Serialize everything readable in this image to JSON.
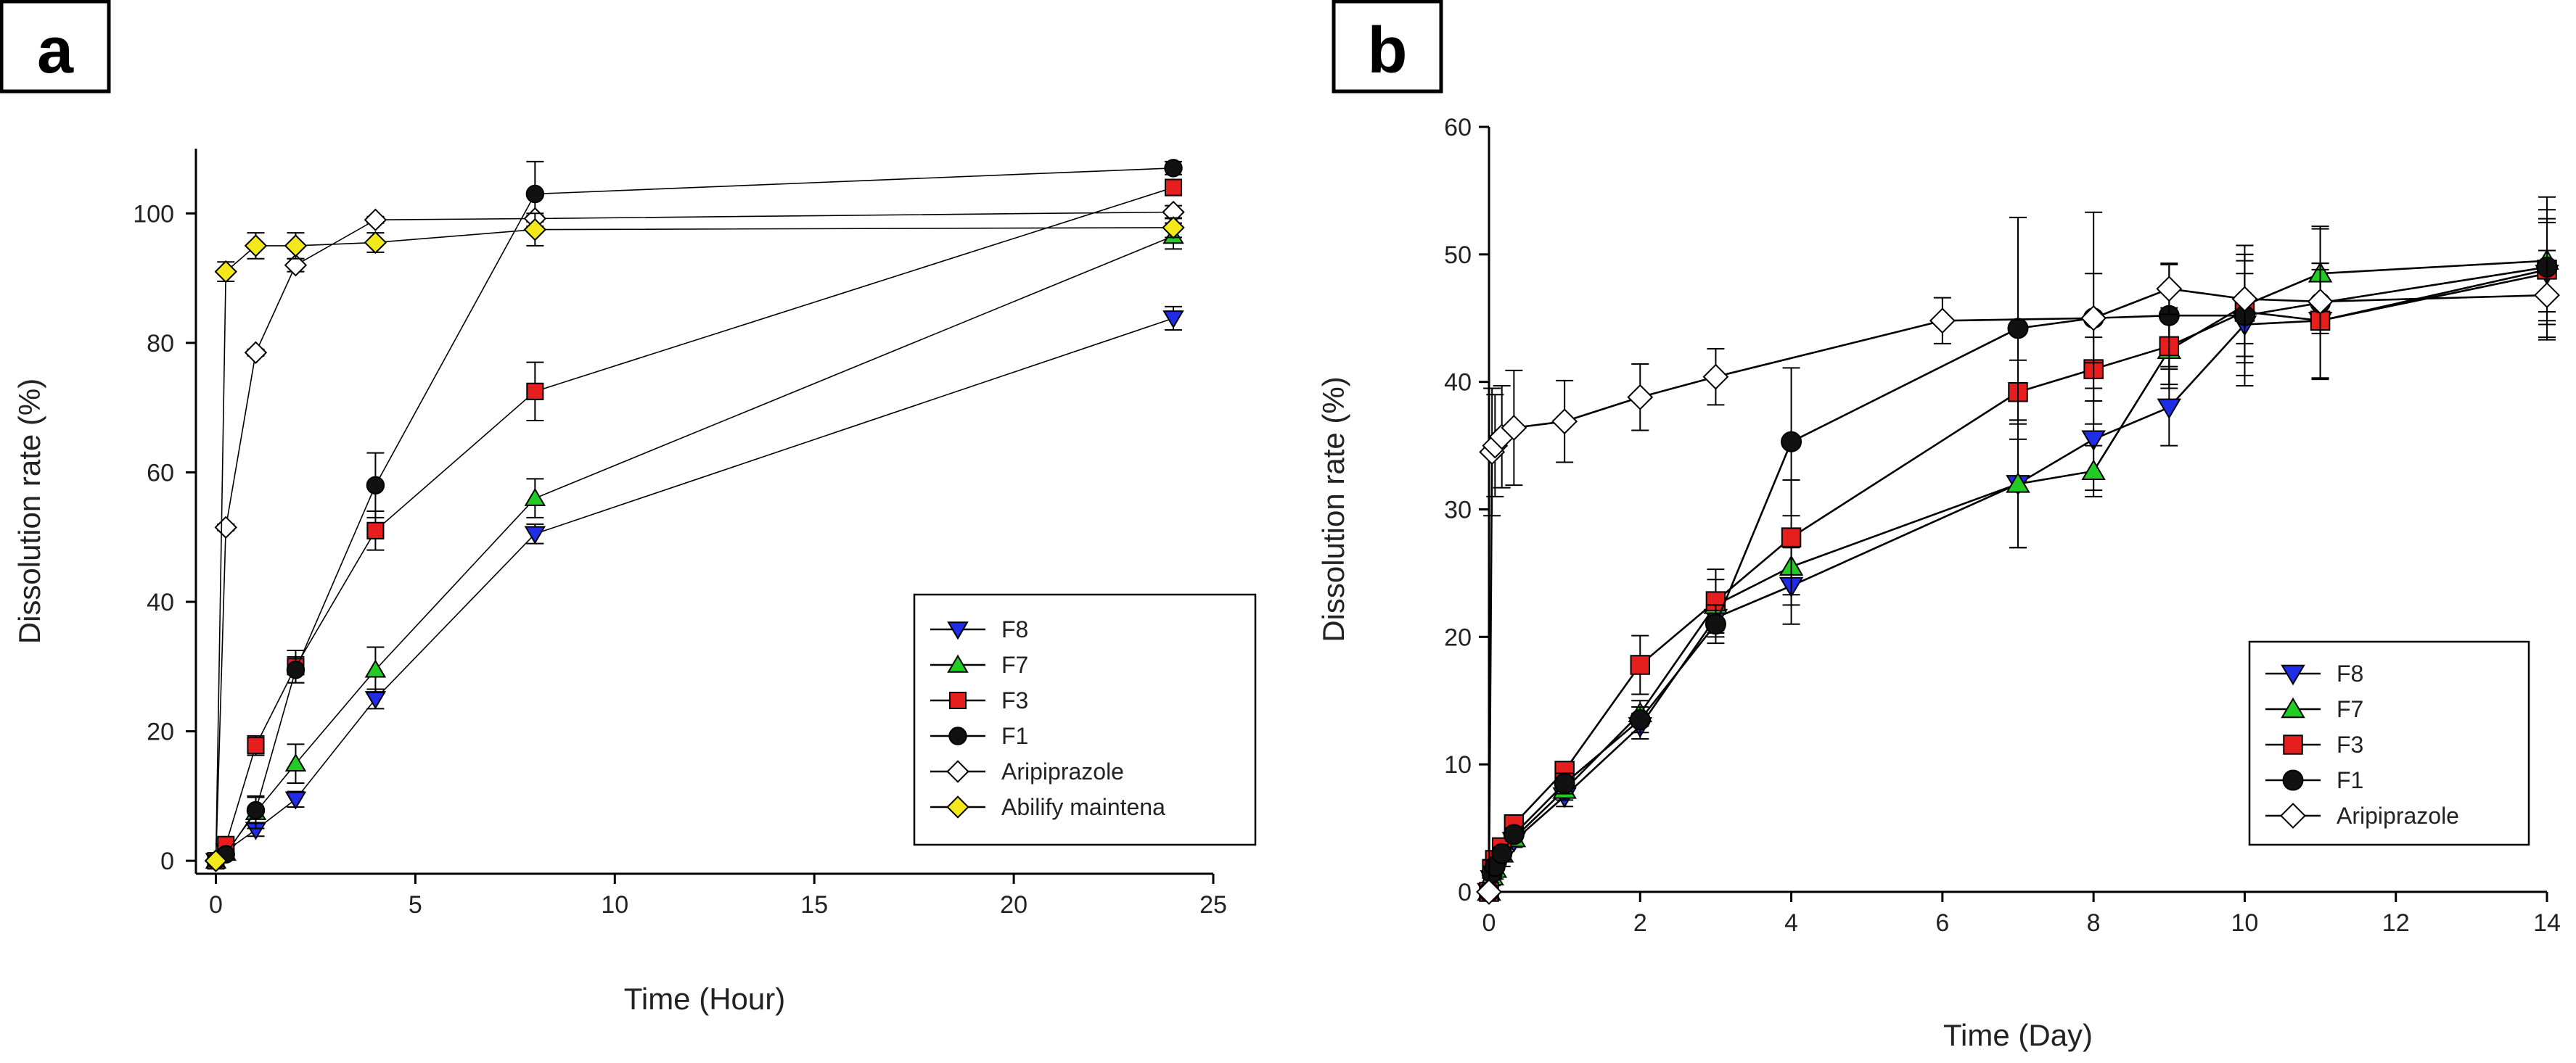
{
  "chart_data": [
    {
      "panel": "a",
      "type": "line",
      "xlabel": "Time (Hour)",
      "ylabel": "Dissolution rate (%)",
      "xlim": [
        -0.5,
        25
      ],
      "ylim": [
        -2,
        110
      ],
      "xticks": [
        0,
        5,
        10,
        15,
        20,
        25
      ],
      "yticks": [
        0,
        20,
        40,
        60,
        80,
        100
      ],
      "legend_position": "bottom-right",
      "series": [
        {
          "name": "F8",
          "marker": "triangle-down",
          "color": "#1f2ee6",
          "filled": true,
          "points": [
            [
              0,
              0,
              0
            ],
            [
              0.25,
              1.5,
              0.5
            ],
            [
              1,
              4.8,
              1.0
            ],
            [
              2,
              9.5,
              1.2
            ],
            [
              4,
              25,
              1.5
            ],
            [
              8,
              50.5,
              1.5
            ],
            [
              24,
              83.8,
              1.8
            ]
          ]
        },
        {
          "name": "F7",
          "marker": "triangle-up",
          "color": "#22cc22",
          "filled": true,
          "points": [
            [
              0,
              0,
              0
            ],
            [
              0.25,
              1.2,
              0.5
            ],
            [
              1,
              7.5,
              2.5
            ],
            [
              2,
              15,
              3
            ],
            [
              4,
              29.5,
              3.5
            ],
            [
              8,
              56,
              3
            ],
            [
              24,
              96.5,
              2
            ]
          ]
        },
        {
          "name": "F3",
          "marker": "square",
          "color": "#e61e1e",
          "filled": true,
          "points": [
            [
              0,
              0,
              0
            ],
            [
              0.25,
              2.5,
              0.8
            ],
            [
              1,
              17.8,
              1.5
            ],
            [
              2,
              30,
              2.5
            ],
            [
              4,
              51,
              3
            ],
            [
              8,
              72.5,
              4.5
            ],
            [
              24,
              104,
              1
            ]
          ]
        },
        {
          "name": "F1",
          "marker": "circle",
          "color": "#111111",
          "filled": true,
          "points": [
            [
              0,
              0,
              0
            ],
            [
              0.25,
              1.0,
              0.5
            ],
            [
              1,
              7.8,
              2
            ],
            [
              2,
              29.5,
              2
            ],
            [
              4,
              58,
              5
            ],
            [
              8,
              103,
              5
            ],
            [
              24,
              107,
              1
            ]
          ]
        },
        {
          "name": "Aripiprazole",
          "marker": "diamond",
          "color": "#ffffff",
          "filled": false,
          "points": [
            [
              0,
              0,
              0
            ],
            [
              0.25,
              51.5,
              0.5
            ],
            [
              1,
              78.5,
              0.5
            ],
            [
              2,
              92,
              1
            ],
            [
              4,
              99,
              0.5
            ],
            [
              8,
              99.2,
              0.5
            ],
            [
              24,
              100.2,
              1
            ]
          ]
        },
        {
          "name": "Abilify maintena",
          "marker": "diamond",
          "color": "#f2e81a",
          "filled": true,
          "points": [
            [
              0,
              0,
              0
            ],
            [
              0.25,
              91,
              1.5
            ],
            [
              1,
              95,
              2
            ],
            [
              2,
              95,
              2
            ],
            [
              4,
              95.5,
              1.5
            ],
            [
              8,
              97.5,
              2.5
            ],
            [
              24,
              97.8,
              1.5
            ]
          ]
        }
      ]
    },
    {
      "panel": "b",
      "type": "line",
      "xlabel": "Time (Day)",
      "ylabel": "Dissolution rate (%)",
      "xlim": [
        0,
        14
      ],
      "ylim": [
        0,
        60
      ],
      "xticks": [
        0,
        2,
        4,
        6,
        8,
        10,
        12,
        14
      ],
      "yticks": [
        0,
        10,
        20,
        30,
        40,
        50,
        60
      ],
      "legend_position": "bottom-right",
      "series": [
        {
          "name": "F8",
          "marker": "triangle-down",
          "color": "#1f2ee6",
          "filled": true,
          "points": [
            [
              0,
              0,
              0
            ],
            [
              0.04,
              1,
              0.5
            ],
            [
              0.08,
              1.5,
              0.5
            ],
            [
              0.17,
              2.5,
              0.5
            ],
            [
              0.33,
              4,
              0.5
            ],
            [
              1,
              7.5,
              0.8
            ],
            [
              2,
              13,
              1
            ],
            [
              3,
              21.5,
              1.5
            ],
            [
              4,
              24,
              3
            ],
            [
              7,
              32,
              5
            ],
            [
              8,
              35.5,
              4
            ],
            [
              9,
              38,
              3
            ],
            [
              10,
              44.5,
              4
            ],
            [
              11,
              44.8,
              4.5
            ],
            [
              14,
              48.5,
              4
            ]
          ]
        },
        {
          "name": "F7",
          "marker": "triangle-up",
          "color": "#22cc22",
          "filled": true,
          "points": [
            [
              0,
              0,
              0
            ],
            [
              0.04,
              1.2,
              0.5
            ],
            [
              0.08,
              1.8,
              0.5
            ],
            [
              0.17,
              3,
              0.5
            ],
            [
              0.33,
              4.2,
              0.5
            ],
            [
              1,
              8,
              0.8
            ],
            [
              2,
              14,
              1
            ],
            [
              3,
              22.5,
              2
            ],
            [
              4,
              25.5,
              3
            ],
            [
              7,
              32,
              5
            ],
            [
              8,
              33,
              2
            ],
            [
              9,
              42.5,
              3
            ],
            [
              10,
              46,
              4
            ],
            [
              11,
              48.5,
              3.5
            ],
            [
              14,
              49.5,
              4
            ]
          ]
        },
        {
          "name": "F3",
          "marker": "square",
          "color": "#e61e1e",
          "filled": true,
          "points": [
            [
              0,
              0,
              0
            ],
            [
              0.04,
              1.8,
              0.5
            ],
            [
              0.08,
              2.5,
              0.5
            ],
            [
              0.17,
              3.5,
              0.5
            ],
            [
              0.33,
              5.3,
              0.5
            ],
            [
              1,
              9.5,
              0.5
            ],
            [
              2,
              17.8,
              2.3
            ],
            [
              3,
              22.8,
              2.5
            ],
            [
              4,
              27.8,
              4.5
            ],
            [
              7,
              39.2,
              2.5
            ],
            [
              8,
              41,
              2.5
            ],
            [
              9,
              42.8,
              3
            ],
            [
              10,
              45.5,
              4
            ],
            [
              11,
              44.8,
              4.5
            ],
            [
              14,
              48.8,
              4
            ]
          ]
        },
        {
          "name": "F1",
          "marker": "circle",
          "color": "#111111",
          "filled": true,
          "points": [
            [
              0,
              0,
              0
            ],
            [
              0.04,
              1.5,
              0.5
            ],
            [
              0.08,
              2,
              0.5
            ],
            [
              0.17,
              3,
              0.5
            ],
            [
              0.33,
              4.5,
              0.5
            ],
            [
              1,
              8.5,
              0.8
            ],
            [
              2,
              13.5,
              1
            ],
            [
              3,
              21,
              1.5
            ],
            [
              4,
              35.3,
              5.8
            ],
            [
              7,
              44.2,
              8.7
            ],
            [
              8,
              45,
              8.3
            ],
            [
              9,
              45.2,
              4
            ],
            [
              10,
              45.2,
              5.5
            ],
            [
              11,
              46.2,
              6
            ],
            [
              14,
              49,
              5.5
            ]
          ]
        },
        {
          "name": "Aripiprazole",
          "marker": "diamond",
          "color": "#ffffff",
          "filled": false,
          "points": [
            [
              0,
              0,
              0
            ],
            [
              0.04,
              34.5,
              5
            ],
            [
              0.08,
              35,
              4
            ],
            [
              0.17,
              35.7,
              4
            ],
            [
              0.33,
              36.4,
              4.5
            ],
            [
              1,
              36.9,
              3.2
            ],
            [
              2,
              38.8,
              2.6
            ],
            [
              3,
              40.4,
              2.2
            ],
            [
              6,
              44.8,
              1.8
            ],
            [
              8,
              45,
              3.5
            ],
            [
              9,
              47.3,
              2
            ],
            [
              10,
              46.5,
              3.5
            ],
            [
              11,
              46.3,
              2.5
            ],
            [
              14,
              46.8,
              3.5
            ]
          ]
        }
      ]
    }
  ],
  "panels": [
    {
      "label": "a"
    },
    {
      "label": "b"
    }
  ]
}
